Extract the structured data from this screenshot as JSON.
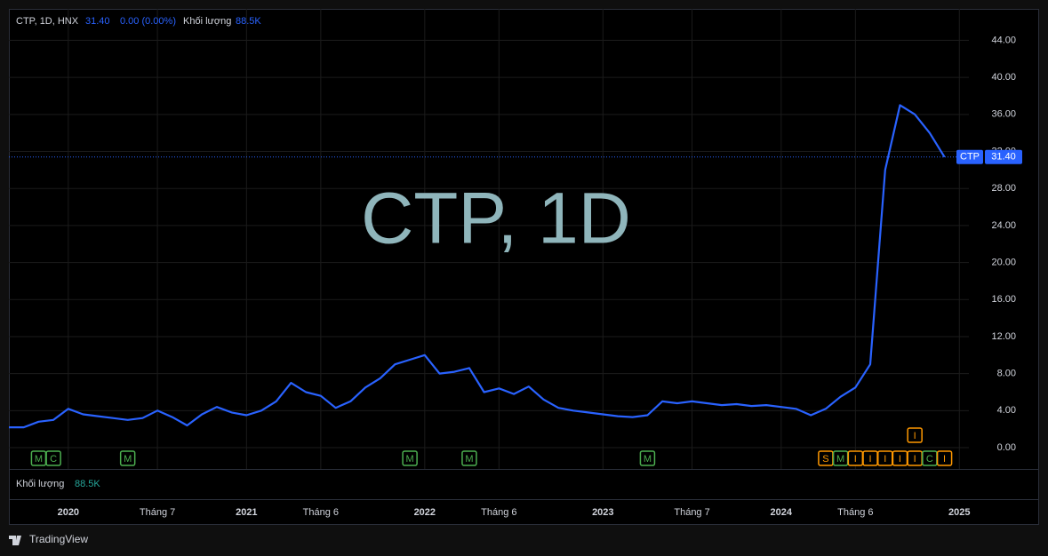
{
  "chart_data": {
    "type": "line",
    "title": "CTP, 1D, HNX",
    "last": {
      "value": 31.4,
      "label": "31.40"
    },
    "change": "0.00 (0.00%)",
    "volume_label": "Khối lượng",
    "volume": "88.5K",
    "watermark": "CTP, 1D",
    "x": [
      "2019-09",
      "2019-10",
      "2019-11",
      "2019-12",
      "2020-01",
      "2020-02",
      "2020-03",
      "2020-04",
      "2020-05",
      "2020-06",
      "2020-07",
      "2020-08",
      "2020-09",
      "2020-10",
      "2020-11",
      "2020-12",
      "2021-01",
      "2021-02",
      "2021-03",
      "2021-04",
      "2021-05",
      "2021-06",
      "2021-07",
      "2021-08",
      "2021-09",
      "2021-10",
      "2021-11",
      "2021-12",
      "2022-01",
      "2022-02",
      "2022-03",
      "2022-04",
      "2022-05",
      "2022-06",
      "2022-07",
      "2022-08",
      "2022-09",
      "2022-10",
      "2022-11",
      "2022-12",
      "2023-01",
      "2023-02",
      "2023-03",
      "2023-04",
      "2023-05",
      "2023-06",
      "2023-07",
      "2023-08",
      "2023-09",
      "2023-10",
      "2023-11",
      "2023-12",
      "2024-01",
      "2024-02",
      "2024-03",
      "2024-04",
      "2024-05",
      "2024-06",
      "2024-07",
      "2024-08",
      "2024-09",
      "2024-10",
      "2024-11",
      "2024-12"
    ],
    "series": [
      {
        "name": "CTP",
        "color": "#2962ff",
        "values": [
          2.2,
          2.2,
          2.8,
          3.0,
          4.2,
          3.6,
          3.4,
          3.2,
          3.0,
          3.2,
          4.0,
          3.3,
          2.4,
          3.6,
          4.4,
          3.8,
          3.5,
          4.0,
          5.0,
          7.0,
          6.0,
          5.6,
          4.3,
          5.0,
          6.5,
          7.5,
          9.0,
          9.5,
          10.0,
          8.0,
          8.2,
          8.6,
          6.0,
          6.4,
          5.8,
          6.6,
          5.2,
          4.3,
          4.0,
          3.8,
          3.6,
          3.4,
          3.3,
          3.5,
          5.0,
          4.8,
          5.0,
          4.8,
          4.6,
          4.7,
          4.5,
          4.6,
          4.4,
          4.2,
          3.5,
          4.2,
          5.5,
          6.5,
          9.0,
          30.0,
          37.0,
          36.0,
          34.0,
          31.4
        ]
      }
    ],
    "xlim": [
      "2019-09",
      "2025-02"
    ],
    "xticks": [
      {
        "value": "2020-01",
        "label": "2020"
      },
      {
        "value": "2020-07",
        "label": "Tháng 7"
      },
      {
        "value": "2021-01",
        "label": "2021"
      },
      {
        "value": "2021-06",
        "label": "Tháng 6"
      },
      {
        "value": "2022-01",
        "label": "2022"
      },
      {
        "value": "2022-06",
        "label": "Tháng 6"
      },
      {
        "value": "2023-01",
        "label": "2023"
      },
      {
        "value": "2023-07",
        "label": "Tháng 7"
      },
      {
        "value": "2024-01",
        "label": "2024"
      },
      {
        "value": "2024-06",
        "label": "Tháng 6"
      },
      {
        "value": "2025-01",
        "label": "2025"
      }
    ],
    "ylim": [
      -2.3,
      47.4
    ],
    "yticks": [
      {
        "value": 0,
        "label": "0.00"
      },
      {
        "value": 4,
        "label": "4.00"
      },
      {
        "value": 8,
        "label": "8.00"
      },
      {
        "value": 12,
        "label": "12.00"
      },
      {
        "value": 16,
        "label": "16.00"
      },
      {
        "value": 20,
        "label": "20.00"
      },
      {
        "value": 24,
        "label": "24.00"
      },
      {
        "value": 28,
        "label": "28.00"
      },
      {
        "value": 32,
        "label": "32.00"
      },
      {
        "value": 36,
        "label": "36.00"
      },
      {
        "value": 40,
        "label": "40.00"
      },
      {
        "value": 44,
        "label": "44.00"
      }
    ],
    "grid": true,
    "events": [
      {
        "x": "2019-11",
        "label": "M",
        "color": "#4caf50"
      },
      {
        "x": "2019-12",
        "label": "C",
        "color": "#4caf50"
      },
      {
        "x": "2020-05",
        "label": "M",
        "color": "#4caf50"
      },
      {
        "x": "2021-12",
        "label": "M",
        "color": "#4caf50"
      },
      {
        "x": "2022-04",
        "label": "M",
        "color": "#4caf50"
      },
      {
        "x": "2023-04",
        "label": "M",
        "color": "#4caf50"
      },
      {
        "x": "2024-04",
        "label": "S",
        "color": "#ff9800"
      },
      {
        "x": "2024-05",
        "label": "M",
        "color": "#4caf50"
      },
      {
        "x": "2024-06",
        "label": "I",
        "color": "#ff9800"
      },
      {
        "x": "2024-07",
        "label": "I",
        "color": "#ff9800"
      },
      {
        "x": "2024-08",
        "label": "I",
        "color": "#ff9800"
      },
      {
        "x": "2024-09",
        "label": "I",
        "color": "#ff9800"
      },
      {
        "x": "2024-10",
        "label": "I",
        "color": "#ff9800"
      },
      {
        "x": "2024-10",
        "label": "I",
        "color": "#ff9800"
      },
      {
        "x": "2024-11",
        "label": "C",
        "color": "#4caf50"
      },
      {
        "x": "2024-12",
        "label": "I",
        "color": "#ff9800"
      }
    ]
  },
  "brand": "TradingView"
}
